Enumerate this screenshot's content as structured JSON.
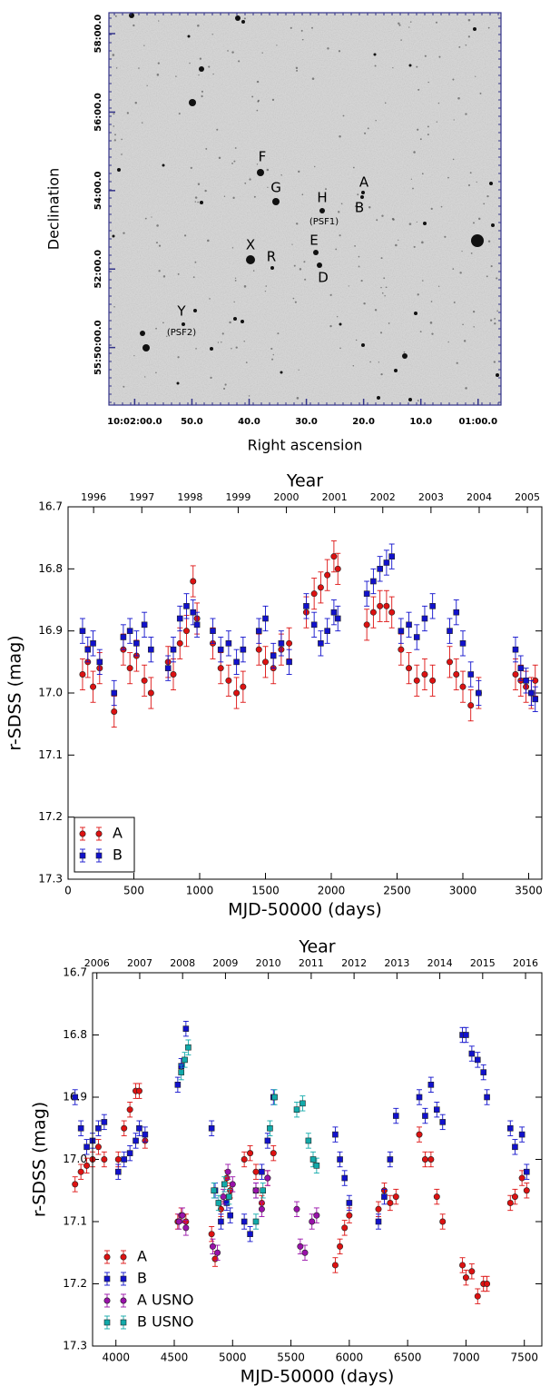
{
  "chart_data": [
    {
      "type": "image",
      "xlabel": "Right ascension",
      "ylabel": "Declination",
      "xlim": [
        36124.5,
        36056
      ],
      "ylim": [
        200912,
        201512
      ],
      "xticks": [
        {
          "value": 36120,
          "label": "10:02:00.0"
        },
        {
          "value": 36110,
          "label": "50.0"
        },
        {
          "value": 36100,
          "label": "40.0"
        },
        {
          "value": 36090,
          "label": "30.0"
        },
        {
          "value": 36080,
          "label": "20.0"
        },
        {
          "value": 36070,
          "label": "10.0"
        },
        {
          "value": 36060,
          "label": "01:00.0"
        }
      ],
      "yticks": [
        {
          "value": 201480,
          "label": "58:00.0"
        },
        {
          "value": 201360,
          "label": "56:00.0"
        },
        {
          "value": 201240,
          "label": "54:00.0"
        },
        {
          "value": 201120,
          "label": "52:00.0"
        },
        {
          "value": 201000,
          "label": "55:50:00.0"
        }
      ],
      "annotations": [
        "A",
        "B",
        "H",
        "(PSF1)",
        "F",
        "G",
        "E",
        "X",
        "R",
        "D",
        "Y",
        "(PSF2)"
      ],
      "annotation_color": "#2a2ad0"
    },
    {
      "type": "scatter",
      "xlabel": "MJD-50000 (days)",
      "ylabel": "r-SDSS (mag)",
      "x2label": "Year",
      "xlim": [
        0,
        3600
      ],
      "xticks": [
        0,
        500,
        1000,
        1500,
        2000,
        2500,
        3000,
        3500
      ],
      "ylim": [
        17.3,
        16.7
      ],
      "yticks": [
        16.7,
        16.8,
        16.9,
        {
          "value": 17,
          "label": "17.0"
        },
        17.1,
        17.2,
        17.3
      ],
      "x2lim": [
        1995.47,
        2005.3
      ],
      "x2ticks": [
        1996,
        1997,
        1998,
        1999,
        2000,
        2001,
        2002,
        2003,
        2004,
        2005
      ],
      "legend": "lower left",
      "legend_frame": true,
      "x": [
        110,
        150,
        190,
        240,
        350,
        420,
        470,
        520,
        580,
        630,
        760,
        800,
        850,
        900,
        950,
        980,
        1100,
        1160,
        1220,
        1280,
        1330,
        1450,
        1500,
        1560,
        1620,
        1680,
        1810,
        1870,
        1920,
        1970,
        2020,
        2050,
        2270,
        2320,
        2370,
        2420,
        2460,
        2530,
        2590,
        2650,
        2710,
        2770,
        2900,
        2950,
        3000,
        3060,
        3120,
        3400,
        3440,
        3480,
        3520,
        3550
      ],
      "series": [
        {
          "name": "A",
          "color": "#dd1111",
          "marker": "circle",
          "yerr": 0.025,
          "values": [
            16.97,
            16.95,
            16.99,
            16.96,
            17.03,
            16.93,
            16.96,
            16.94,
            16.98,
            17.0,
            16.95,
            16.97,
            16.92,
            16.9,
            16.82,
            16.88,
            16.92,
            16.96,
            16.98,
            17.0,
            16.99,
            16.93,
            16.95,
            16.96,
            16.93,
            16.92,
            16.87,
            16.84,
            16.83,
            16.81,
            16.78,
            16.8,
            16.89,
            16.87,
            16.86,
            16.86,
            16.87,
            16.93,
            16.96,
            16.98,
            16.97,
            16.98,
            16.95,
            16.97,
            16.99,
            17.02,
            17.0,
            16.97,
            16.98,
            16.99,
            17.0,
            16.98
          ]
        },
        {
          "name": "B",
          "color": "#1111cc",
          "marker": "square",
          "yerr": 0.02,
          "values": [
            16.9,
            16.93,
            16.92,
            16.95,
            17.0,
            16.91,
            16.9,
            16.92,
            16.89,
            16.93,
            16.96,
            16.93,
            16.88,
            16.86,
            16.87,
            16.89,
            16.9,
            16.93,
            16.92,
            16.95,
            16.93,
            16.9,
            16.88,
            16.94,
            16.92,
            16.95,
            16.86,
            16.89,
            16.92,
            16.9,
            16.87,
            16.88,
            16.84,
            16.82,
            16.8,
            16.79,
            16.78,
            16.9,
            16.89,
            16.91,
            16.88,
            16.86,
            16.9,
            16.87,
            16.92,
            16.97,
            17.0,
            16.93,
            16.96,
            16.98,
            17.0,
            17.01
          ]
        }
      ]
    },
    {
      "type": "scatter",
      "xlabel": "MJD-50000 (days)",
      "ylabel": "r-SDSS (mag)",
      "x2label": "Year",
      "xlim": [
        3800,
        7650
      ],
      "xticks": [
        4000,
        4500,
        5000,
        5500,
        6000,
        6500,
        7000,
        7500
      ],
      "ylim": [
        17.3,
        16.7
      ],
      "yticks": [
        16.7,
        16.8,
        16.9,
        {
          "value": 17,
          "label": "17.0"
        },
        17.1,
        17.2,
        17.3
      ],
      "x2lim": [
        2005.9,
        2016.38
      ],
      "x2ticks": [
        2006,
        2007,
        2008,
        2009,
        2010,
        2011,
        2012,
        2013,
        2014,
        2015,
        2016
      ],
      "legend": "lower left",
      "legend_frame": false,
      "series": [
        {
          "name": "A",
          "color": "#dd1111",
          "marker": "circle",
          "yerr": 0.012,
          "x": [
            3650,
            3700,
            3750,
            3800,
            3850,
            3900,
            4020,
            4070,
            4120,
            4170,
            4200,
            4250,
            4530,
            4560,
            4600,
            4820,
            4850,
            4900,
            4950,
            4980,
            5100,
            5150,
            5200,
            5250,
            5300,
            5350,
            5880,
            5920,
            5960,
            6000,
            6250,
            6300,
            6350,
            6400,
            6600,
            6650,
            6700,
            6750,
            6800,
            6970,
            7000,
            7050,
            7100,
            7150,
            7180,
            7380,
            7420,
            7480,
            7520
          ],
          "values": [
            17.04,
            17.02,
            17.01,
            17.0,
            16.98,
            17.0,
            17.0,
            16.95,
            16.92,
            16.89,
            16.89,
            16.97,
            17.1,
            17.09,
            17.1,
            17.12,
            17.16,
            17.08,
            17.03,
            17.05,
            17.0,
            16.99,
            17.02,
            17.07,
            17.03,
            16.99,
            17.17,
            17.14,
            17.11,
            17.09,
            17.08,
            17.05,
            17.07,
            17.06,
            16.96,
            17.0,
            17.0,
            17.06,
            17.1,
            17.17,
            17.19,
            17.18,
            17.22,
            17.2,
            17.2,
            17.07,
            17.06,
            17.03,
            17.05
          ]
        },
        {
          "name": "B",
          "color": "#1111cc",
          "marker": "square",
          "yerr": 0.012,
          "x": [
            3650,
            3700,
            3750,
            3800,
            3850,
            3900,
            4020,
            4070,
            4120,
            4170,
            4200,
            4250,
            4530,
            4560,
            4600,
            4820,
            4850,
            4900,
            4950,
            4980,
            5100,
            5150,
            5200,
            5250,
            5300,
            5350,
            5880,
            5920,
            5960,
            6000,
            6250,
            6300,
            6350,
            6400,
            6600,
            6650,
            6700,
            6750,
            6800,
            6970,
            7000,
            7050,
            7100,
            7150,
            7180,
            7380,
            7420,
            7480,
            7520
          ],
          "values": [
            16.9,
            16.95,
            16.98,
            16.97,
            16.95,
            16.94,
            17.02,
            17.0,
            16.99,
            16.97,
            16.95,
            16.96,
            16.88,
            16.85,
            16.79,
            16.95,
            17.05,
            17.1,
            17.07,
            17.09,
            17.1,
            17.12,
            17.05,
            17.02,
            16.97,
            16.9,
            16.96,
            17.0,
            17.03,
            17.07,
            17.1,
            17.06,
            17.0,
            16.93,
            16.9,
            16.93,
            16.88,
            16.92,
            16.94,
            16.8,
            16.8,
            16.83,
            16.84,
            16.86,
            16.9,
            16.95,
            16.98,
            16.96,
            17.02
          ]
        },
        {
          "name": "A USNO",
          "color": "#9911aa",
          "marker": "circle",
          "yerr": 0.012,
          "x": [
            4540,
            4570,
            4600,
            4830,
            4870,
            4920,
            4960,
            5000,
            5200,
            5250,
            5300,
            5550,
            5580,
            5620,
            5680,
            5720
          ],
          "values": [
            17.1,
            17.09,
            17.11,
            17.14,
            17.15,
            17.06,
            17.02,
            17.04,
            17.05,
            17.08,
            17.03,
            17.08,
            17.14,
            17.15,
            17.1,
            17.09
          ]
        },
        {
          "name": "B USNO",
          "color": "#11aaaa",
          "marker": "square",
          "yerr": 0.012,
          "x": [
            4560,
            4590,
            4620,
            4840,
            4880,
            4930,
            4970,
            5200,
            5260,
            5320,
            5360,
            5550,
            5600,
            5650,
            5690,
            5720
          ],
          "values": [
            16.86,
            16.84,
            16.82,
            17.05,
            17.07,
            17.04,
            17.06,
            17.1,
            17.05,
            16.95,
            16.9,
            16.92,
            16.91,
            16.97,
            17.0,
            17.01
          ]
        }
      ]
    }
  ]
}
